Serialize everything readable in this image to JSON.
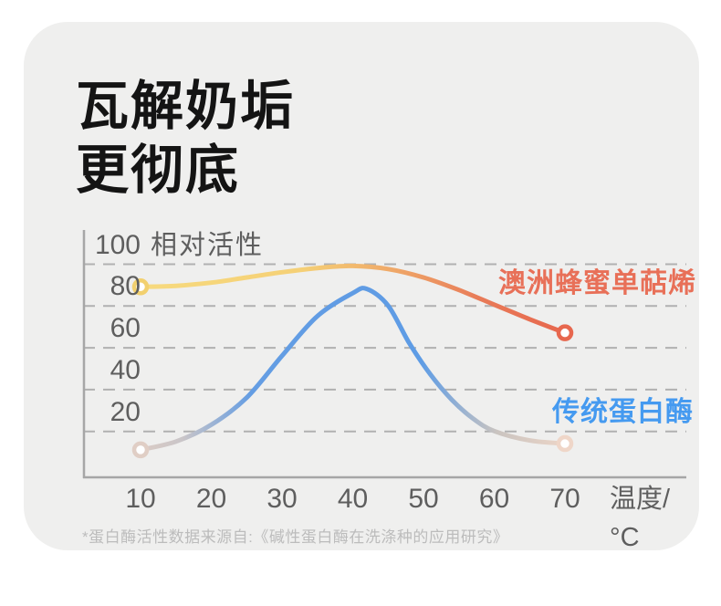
{
  "page": {
    "background": "#ffffff",
    "card_background": "#efefee"
  },
  "title": {
    "line1": "瓦解奶垢",
    "line2": "更彻底"
  },
  "footnote": "*蛋白酶活性数据来源自:《碱性蛋白酶在洗涤种的应用研究》",
  "chart_data": {
    "type": "line",
    "title": "",
    "y_axis_label": "相对活性",
    "x_axis_label": "温度/°C",
    "y_ticks": [
      100,
      80,
      60,
      40,
      20
    ],
    "x_ticks": [
      10,
      20,
      30,
      40,
      50,
      60,
      70
    ],
    "xlim": [
      10,
      70
    ],
    "ylim": [
      0,
      100
    ],
    "grid": "dashed-horizontal",
    "axis_color": "#a6a6a6",
    "grid_color": "#b1b1b1",
    "tick_color": "#5e5e5e",
    "legend_position": "inline-right",
    "series": [
      {
        "name": "澳洲蜂蜜单萜烯",
        "label_color": "#e87058",
        "line_width": 5,
        "gradient": [
          {
            "offset": 0.0,
            "color": "#f7da7e"
          },
          {
            "offset": 0.38,
            "color": "#f5d076"
          },
          {
            "offset": 0.6,
            "color": "#efa768"
          },
          {
            "offset": 0.8,
            "color": "#e87b58"
          },
          {
            "offset": 1.0,
            "color": "#e7674e"
          }
        ],
        "start_marker_color": "#f2d06e",
        "end_marker_color": "#e7674e",
        "points": [
          [
            10,
            80
          ],
          [
            15,
            80.5
          ],
          [
            20,
            82
          ],
          [
            25,
            84.5
          ],
          [
            30,
            87
          ],
          [
            35,
            89
          ],
          [
            40,
            90
          ],
          [
            45,
            88.5
          ],
          [
            50,
            84.5
          ],
          [
            55,
            78.5
          ],
          [
            60,
            71.5
          ],
          [
            65,
            64.5
          ],
          [
            70,
            58
          ]
        ]
      },
      {
        "name": "传统蛋白酶",
        "label_color": "#459af0",
        "line_width": 5,
        "gradient": [
          {
            "offset": 0.0,
            "color": "#dbccc5"
          },
          {
            "offset": 0.1,
            "color": "#c9c5c8"
          },
          {
            "offset": 0.26,
            "color": "#649de3"
          },
          {
            "offset": 0.66,
            "color": "#5e9ce5"
          },
          {
            "offset": 0.84,
            "color": "#cac4c0"
          },
          {
            "offset": 1.0,
            "color": "#ecd5c7"
          }
        ],
        "start_marker_color": "#e0cec5",
        "end_marker_color": "#efd6c8",
        "points": [
          [
            10,
            2
          ],
          [
            15,
            6
          ],
          [
            20,
            14
          ],
          [
            25,
            27
          ],
          [
            30,
            47
          ],
          [
            35,
            66
          ],
          [
            40,
            77
          ],
          [
            42,
            79
          ],
          [
            45,
            71
          ],
          [
            48,
            53
          ],
          [
            51,
            38
          ],
          [
            54,
            26
          ],
          [
            57,
            17
          ],
          [
            60,
            11
          ],
          [
            65,
            6.5
          ],
          [
            70,
            5
          ]
        ]
      }
    ]
  }
}
